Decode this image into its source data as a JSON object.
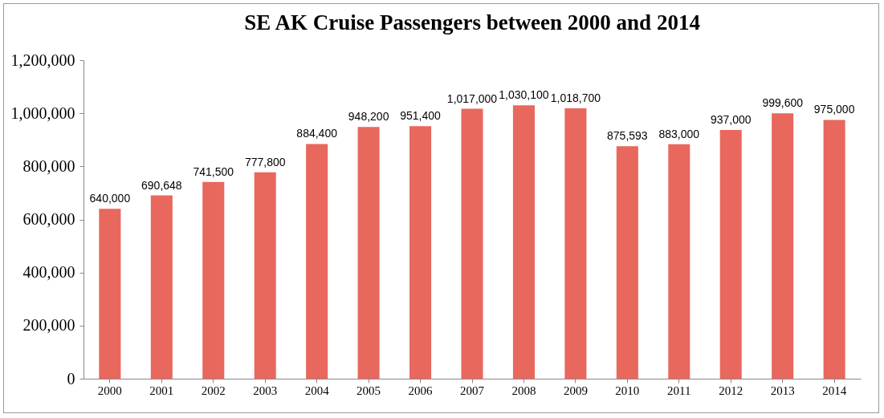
{
  "chart_data": {
    "type": "bar",
    "title": "SE AK Cruise Passengers between 2000 and 2014",
    "categories": [
      "2000",
      "2001",
      "2002",
      "2003",
      "2004",
      "2005",
      "2006",
      "2007",
      "2008",
      "2009",
      "2010",
      "2011",
      "2012",
      "2013",
      "2014"
    ],
    "values": [
      640000,
      690648,
      741500,
      777800,
      884400,
      948200,
      951400,
      1017000,
      1030100,
      1018700,
      875593,
      883000,
      937000,
      999600,
      975000
    ],
    "value_labels": [
      "640,000",
      "690,648",
      "741,500",
      "777,800",
      "884,400",
      "948,200",
      "951,400",
      "1,017,000",
      "1,030,100",
      "1,018,700",
      "875,593",
      "883,000",
      "937,000",
      "999,600",
      "975,000"
    ],
    "color": "#e8685e",
    "ylim": [
      0,
      1200000
    ],
    "yticks": [
      0,
      {
        "value": 200000,
        "label": "200,000"
      },
      {
        "value": 400000,
        "label": "400,000"
      },
      {
        "value": 600000,
        "label": "600,000"
      },
      {
        "value": 800000,
        "label": "800,000"
      },
      {
        "value": 1000000,
        "label": "1,000,000"
      },
      {
        "value": 1200000,
        "label": "1,200,000"
      }
    ],
    "grid": false
  }
}
